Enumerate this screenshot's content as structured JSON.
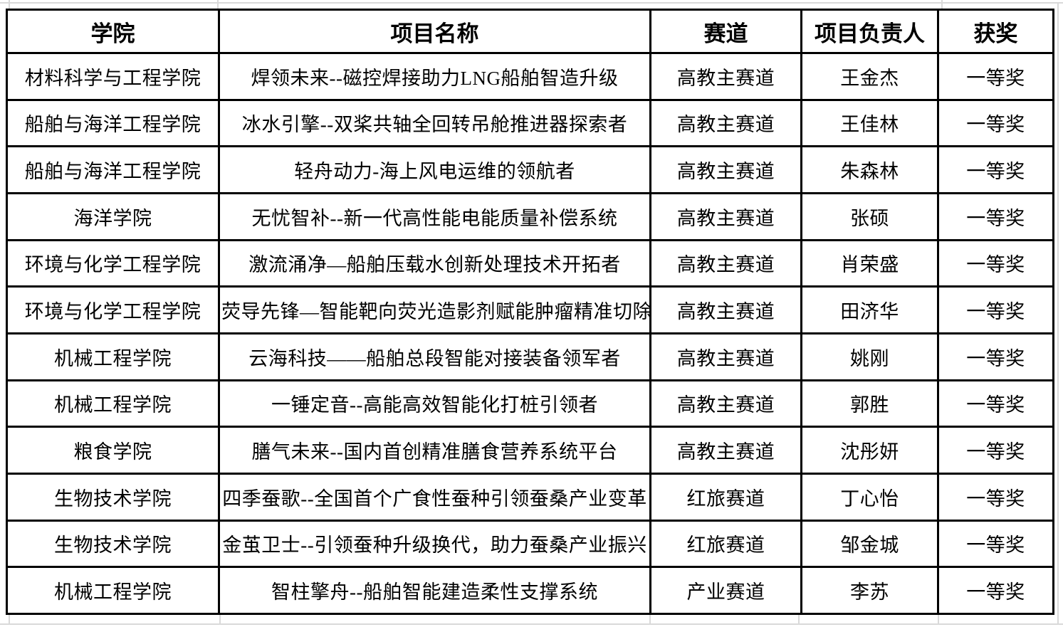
{
  "table": {
    "columns": [
      "学院",
      "项目名称",
      "赛道",
      "项目负责人",
      "获奖"
    ],
    "rows": [
      {
        "college": "材料科学与工程学院",
        "project": "焊领未来--磁控焊接助力LNG船舶智造升级",
        "track": "高教主赛道",
        "leader": "王金杰",
        "award": "一等奖"
      },
      {
        "college": "船舶与海洋工程学院",
        "project": "冰水引擎--双桨共轴全回转吊舱推进器探索者",
        "track": "高教主赛道",
        "leader": "王佳林",
        "award": "一等奖"
      },
      {
        "college": "船舶与海洋工程学院",
        "project": "轻舟动力-海上风电运维的领航者",
        "track": "高教主赛道",
        "leader": "朱森林",
        "award": "一等奖"
      },
      {
        "college": "海洋学院",
        "project": "无忧智补--新一代高性能电能质量补偿系统",
        "track": "高教主赛道",
        "leader": "张硕",
        "award": "一等奖"
      },
      {
        "college": "环境与化学工程学院",
        "project": "激流涌净—船舶压载水创新处理技术开拓者",
        "track": "高教主赛道",
        "leader": "肖荣盛",
        "award": "一等奖"
      },
      {
        "college": "环境与化学工程学院",
        "project": "荧导先锋—智能靶向荧光造影剂赋能肿瘤精准切除",
        "track": "高教主赛道",
        "leader": "田济华",
        "award": "一等奖"
      },
      {
        "college": "机械工程学院",
        "project": "云海科技——船舶总段智能对接装备领军者",
        "track": "高教主赛道",
        "leader": "姚刚",
        "award": "一等奖"
      },
      {
        "college": "机械工程学院",
        "project": "一锤定音--高能高效智能化打桩引领者",
        "track": "高教主赛道",
        "leader": "郭胜",
        "award": "一等奖"
      },
      {
        "college": "粮食学院",
        "project": "膳气未来--国内首创精准膳食营养系统平台",
        "track": "高教主赛道",
        "leader": "沈彤妍",
        "award": "一等奖"
      },
      {
        "college": "生物技术学院",
        "project": "四季蚕歌--全国首个广食性蚕种引领蚕桑产业变革",
        "track": "红旅赛道",
        "leader": "丁心怡",
        "award": "一等奖"
      },
      {
        "college": "生物技术学院",
        "project": "金茧卫士--引领蚕种升级换代，助力蚕桑产业振兴",
        "track": "红旅赛道",
        "leader": "邹金城",
        "award": "一等奖"
      },
      {
        "college": "机械工程学院",
        "project": "智柱擎舟--船舶智能建造柔性支撑系统",
        "track": "产业赛道",
        "leader": "李苏",
        "award": "一等奖"
      }
    ]
  }
}
